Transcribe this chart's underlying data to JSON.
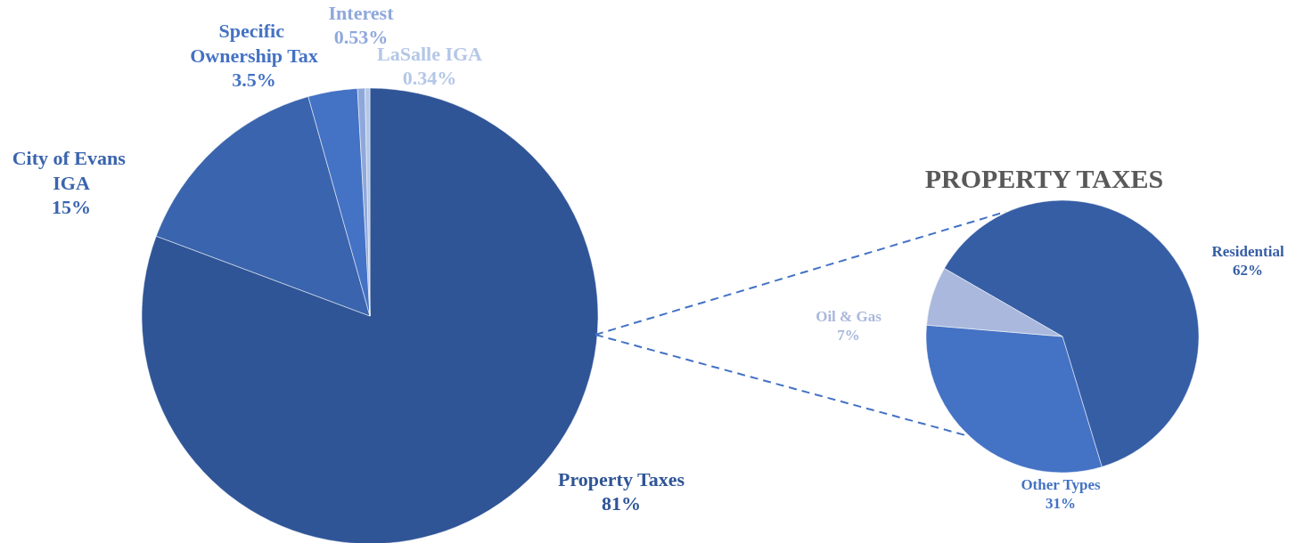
{
  "chart_data": [
    {
      "type": "pie",
      "categories": [
        "Property Taxes",
        "City of Evans IGA",
        "Specific Ownership Tax",
        "Interest",
        "LaSalle IGA"
      ],
      "values": [
        81,
        15,
        3.5,
        0.53,
        0.34
      ],
      "value_labels": [
        "81%",
        "15%",
        "3.5%",
        "0.53%",
        "0.34%"
      ],
      "colors": [
        "#2f5597",
        "#3a64ad",
        "#4472c4",
        "#8fa8dc",
        "#b4c7e7"
      ],
      "legend": false
    },
    {
      "type": "pie",
      "title": "PROPERTY TAXES",
      "categories": [
        "Residential",
        "Other Types",
        "Oil & Gas"
      ],
      "values": [
        62,
        31,
        7
      ],
      "value_labels": [
        "62%",
        "31%",
        "7%"
      ],
      "colors": [
        "#365ea5",
        "#4472c4",
        "#a9b8dc"
      ],
      "legend": false
    }
  ]
}
